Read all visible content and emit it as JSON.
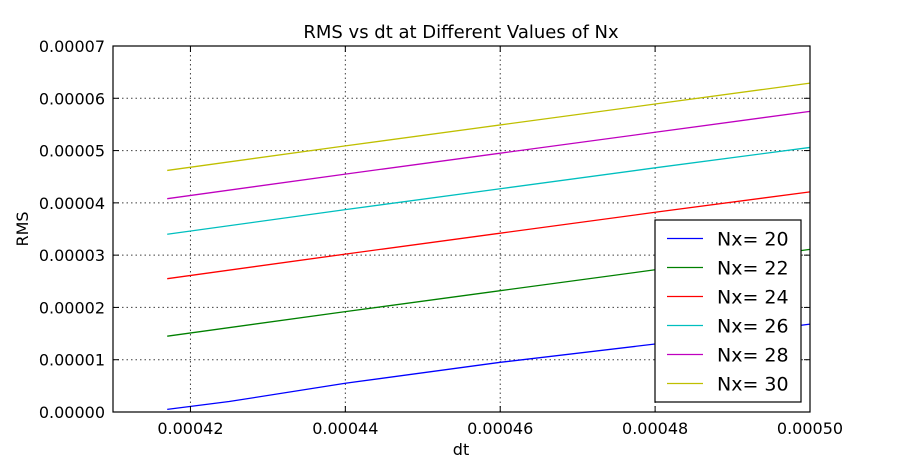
{
  "chart_data": {
    "type": "line",
    "title": "RMS vs dt at Different Values of Nx",
    "xlabel": "dt",
    "ylabel": "RMS",
    "xlim": [
      0.00041,
      0.0005
    ],
    "ylim": [
      0,
      7e-05
    ],
    "x_ticks": [
      0.00042,
      0.00044,
      0.00046,
      0.00048,
      0.0005
    ],
    "x_tick_labels": [
      "0.00042",
      "0.00044",
      "0.00046",
      "0.00048",
      "0.00050"
    ],
    "y_ticks": [
      0,
      1e-05,
      2e-05,
      3e-05,
      4e-05,
      5e-05,
      6e-05,
      7e-05
    ],
    "y_tick_labels": [
      "0.00000",
      "0.00001",
      "0.00002",
      "0.00003",
      "0.00004",
      "0.00005",
      "0.00006",
      "0.00007"
    ],
    "grid": true,
    "legend_position": "lower-right",
    "series": [
      {
        "name": "Nx= 20",
        "color": "#0000ff",
        "x": [
          0.000417,
          0.000425,
          0.00044,
          0.00046,
          0.00048,
          0.0005
        ],
        "y": [
          5e-07,
          2e-06,
          5.5e-06,
          9.5e-06,
          1.3e-05,
          1.68e-05
        ]
      },
      {
        "name": "Nx= 22",
        "color": "#008000",
        "x": [
          0.000417,
          0.00044,
          0.00046,
          0.00048,
          0.0005
        ],
        "y": [
          1.45e-05,
          1.92e-05,
          2.32e-05,
          2.72e-05,
          3.11e-05
        ]
      },
      {
        "name": "Nx= 24",
        "color": "#ff0000",
        "x": [
          0.000417,
          0.00044,
          0.00046,
          0.00048,
          0.0005
        ],
        "y": [
          2.55e-05,
          3.02e-05,
          3.42e-05,
          3.82e-05,
          4.21e-05
        ]
      },
      {
        "name": "Nx= 26",
        "color": "#00bfbf",
        "x": [
          0.000417,
          0.00044,
          0.00046,
          0.00048,
          0.0005
        ],
        "y": [
          3.4e-05,
          3.87e-05,
          4.27e-05,
          4.67e-05,
          5.06e-05
        ]
      },
      {
        "name": "Nx= 28",
        "color": "#bf00bf",
        "x": [
          0.000417,
          0.00044,
          0.00046,
          0.00048,
          0.0005
        ],
        "y": [
          4.08e-05,
          4.55e-05,
          4.95e-05,
          5.35e-05,
          5.75e-05
        ]
      },
      {
        "name": "Nx= 30",
        "color": "#bfbf00",
        "x": [
          0.000417,
          0.00044,
          0.00046,
          0.00048,
          0.0005
        ],
        "y": [
          4.62e-05,
          5.09e-05,
          5.49e-05,
          5.89e-05,
          6.29e-05
        ]
      }
    ]
  }
}
